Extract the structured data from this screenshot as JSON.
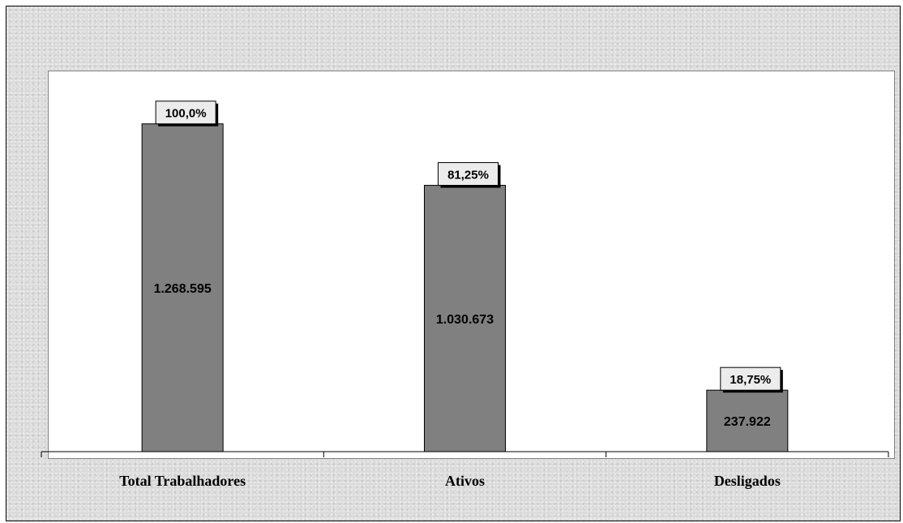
{
  "chart_data": {
    "type": "bar",
    "categories": [
      "Total Trabalhadores",
      "Ativos",
      "Desligados"
    ],
    "values": [
      1268595,
      1030673,
      237922
    ],
    "value_labels": [
      "1.268.595",
      "1.030.673",
      "237.922"
    ],
    "percent_labels": [
      "100,0%",
      "81,25%",
      "18,75%"
    ],
    "ylim": [
      0,
      1500000
    ],
    "grid": false,
    "bar_color": "#808080",
    "plot_background": "#ffffff",
    "chart_background": "#d9d9d9"
  }
}
